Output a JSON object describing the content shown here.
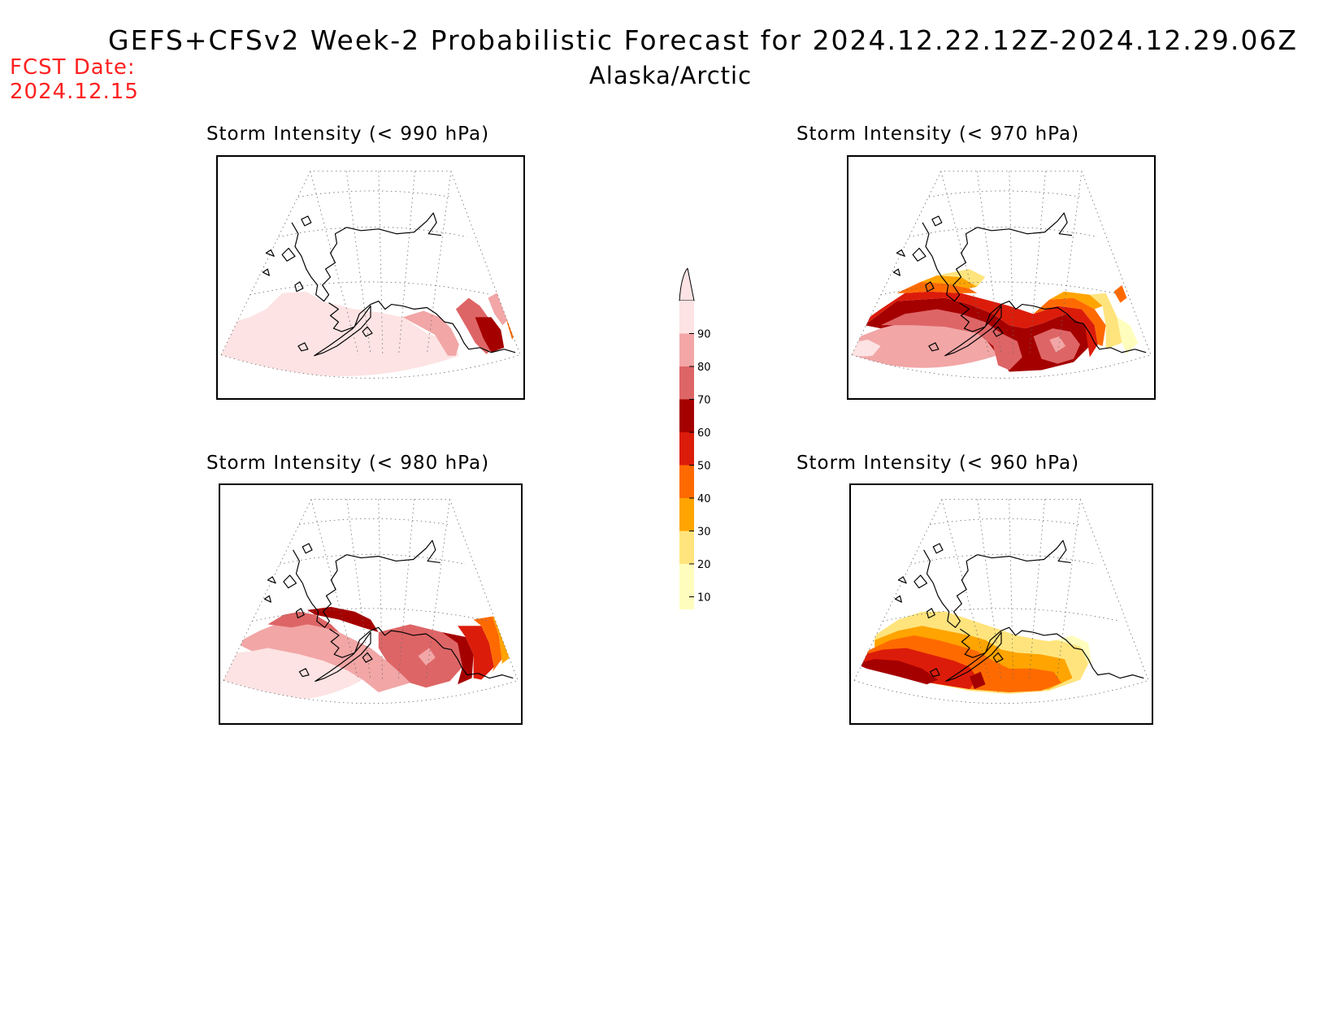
{
  "header": {
    "title": "GEFS+CFSv2 Week-2 Probabilistic Forecast for 2024.12.22.12Z-2024.12.29.06Z",
    "subtitle": "Alaska/Arctic",
    "fcst_label": "FCST Date:",
    "fcst_date": "2024.12.15"
  },
  "panels": [
    {
      "title": "Storm Intensity (< 990 hPa)",
      "threshold_hpa": 990,
      "dominant_probability_percent": 90
    },
    {
      "title": "Storm Intensity (< 970 hPa)",
      "threshold_hpa": 970,
      "dominant_probability_percent": 60
    },
    {
      "title": "Storm Intensity (< 980 hPa)",
      "threshold_hpa": 980,
      "dominant_probability_percent": 80
    },
    {
      "title": "Storm Intensity (< 960 hPa)",
      "threshold_hpa": 960,
      "dominant_probability_percent": 40
    }
  ],
  "colorbar": {
    "labels": [
      "90",
      "80",
      "70",
      "60",
      "50",
      "40",
      "30",
      "20",
      "10"
    ],
    "colors": [
      "#fde3e3",
      "#f2a6a6",
      "#de6566",
      "#a50000",
      "#dc1c0a",
      "#ff6a00",
      "#ffa400",
      "#ffe47d",
      "#fffdbd"
    ],
    "top_color": "#fde3e3"
  },
  "map_style": {
    "land_outline": "#000000",
    "graticule": "#666666"
  }
}
